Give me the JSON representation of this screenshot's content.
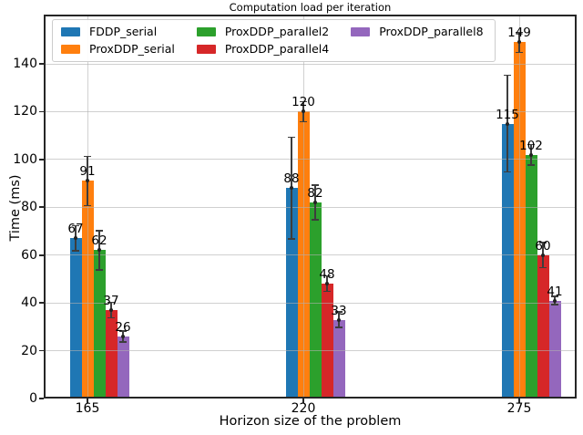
{
  "chart_data": {
    "type": "bar",
    "title": "Computation load per iteration",
    "xlabel": "Horizon size of the problem",
    "ylabel": "Time (ms)",
    "categories": [
      "165",
      "220",
      "275"
    ],
    "series": [
      {
        "name": "FDDP_serial",
        "color": "#1f77b4",
        "values": [
          67,
          88,
          115
        ],
        "errors": [
          5,
          21,
          20
        ]
      },
      {
        "name": "ProxDDP_serial",
        "color": "#ff7f0e",
        "values": [
          91,
          120,
          149
        ],
        "errors": [
          10,
          4,
          4
        ]
      },
      {
        "name": "ProxDDP_parallel2",
        "color": "#2ca02c",
        "values": [
          62,
          82,
          102
        ],
        "errors": [
          8,
          7,
          4
        ]
      },
      {
        "name": "ProxDDP_parallel4",
        "color": "#d62728",
        "values": [
          37,
          48,
          60
        ],
        "errors": [
          3,
          3,
          5
        ]
      },
      {
        "name": "ProxDDP_parallel8",
        "color": "#9467bd",
        "values": [
          26,
          33,
          41
        ],
        "errors": [
          2,
          3,
          1.5
        ]
      }
    ],
    "yticks": [
      0,
      20,
      40,
      60,
      80,
      100,
      120,
      140
    ],
    "ylim": [
      0,
      160.6
    ],
    "grid": true,
    "grid_color": "#b0b0b0",
    "legend_position": "upper-left",
    "bar_value_labels": true,
    "error_bars": true
  },
  "colors": {
    "background": "#ffffff",
    "spine": "#262626",
    "error_bar": "#3d3d3d",
    "text": "#000000"
  }
}
